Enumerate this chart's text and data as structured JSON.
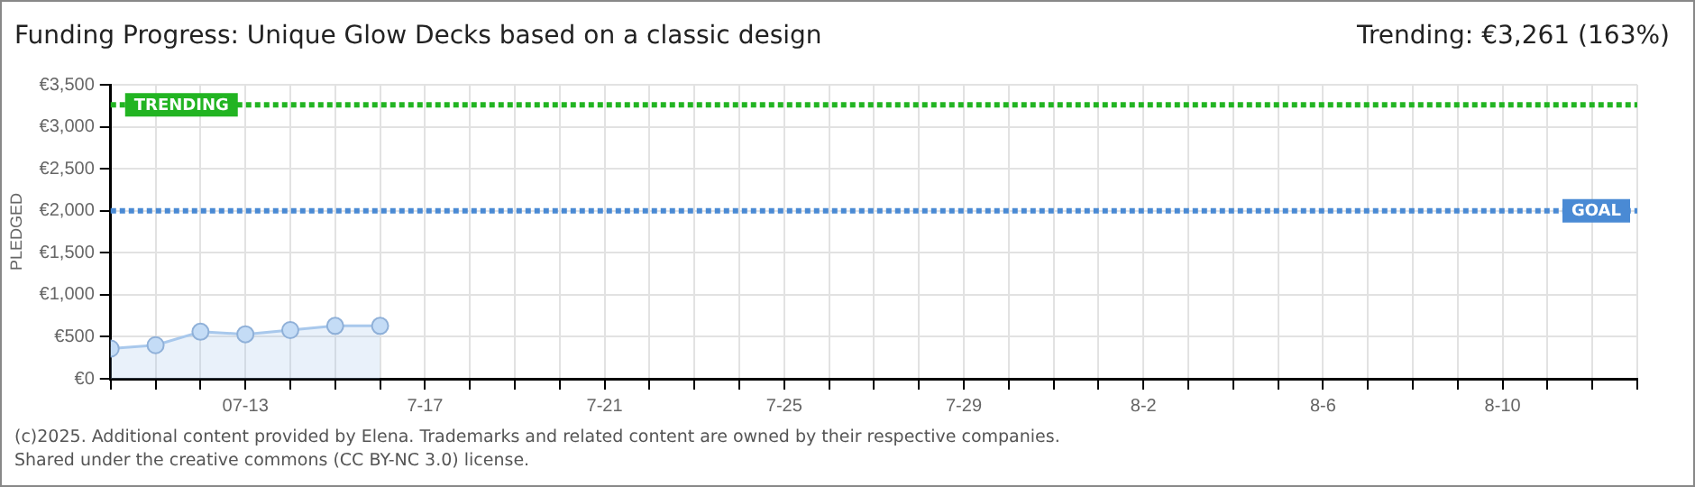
{
  "chart_data": {
    "type": "area",
    "title": "Funding Progress: Unique Glow Decks based on a classic design",
    "subtitle": "Trending: €3,261 (163%)",
    "ylabel": "PLEDGED",
    "x": [
      "--07-10",
      "--07-11",
      "--07-12",
      "--07-13",
      "--07-14",
      "--07-15",
      "--07-16"
    ],
    "series": [
      {
        "color": "#a8c8ec",
        "values": [
          360,
          400,
          560,
          530,
          580,
          630,
          630
        ]
      }
    ],
    "xlim": [
      "--07-10",
      "--08-13"
    ],
    "xticks": [
      {
        "value": "--07-10",
        "label": null
      },
      {
        "value": "--07-11",
        "label": null
      },
      {
        "value": "--07-12",
        "label": null
      },
      {
        "value": "--07-13",
        "label": "07-13"
      },
      {
        "value": "--07-14",
        "label": null
      },
      {
        "value": "--07-15",
        "label": null
      },
      {
        "value": "--07-16",
        "label": null
      },
      {
        "value": "--07-17",
        "label": "7-17"
      },
      {
        "value": "--07-18",
        "label": null
      },
      {
        "value": "--07-19",
        "label": null
      },
      {
        "value": "--07-20",
        "label": null
      },
      {
        "value": "--07-21",
        "label": "7-21"
      },
      {
        "value": "--07-22",
        "label": null
      },
      {
        "value": "--07-23",
        "label": null
      },
      {
        "value": "--07-24",
        "label": null
      },
      {
        "value": "--07-25",
        "label": "7-25"
      },
      {
        "value": "--07-26",
        "label": null
      },
      {
        "value": "--07-27",
        "label": null
      },
      {
        "value": "--07-28",
        "label": null
      },
      {
        "value": "--07-29",
        "label": "7-29"
      },
      {
        "value": "--07-30",
        "label": null
      },
      {
        "value": "--07-31",
        "label": null
      },
      {
        "value": "--08-01",
        "label": null
      },
      {
        "value": "--08-02",
        "label": "8-2"
      },
      {
        "value": "--08-03",
        "label": null
      },
      {
        "value": "--08-04",
        "label": null
      },
      {
        "value": "--08-05",
        "label": null
      },
      {
        "value": "--08-06",
        "label": "8-6"
      },
      {
        "value": "--08-07",
        "label": null
      },
      {
        "value": "--08-08",
        "label": null
      },
      {
        "value": "--08-09",
        "label": null
      },
      {
        "value": "--08-10",
        "label": "8-10"
      },
      {
        "value": "--08-11",
        "label": null
      },
      {
        "value": "--08-12",
        "label": null
      },
      {
        "value": "--08-13",
        "label": null
      }
    ],
    "ylim": [
      0,
      3500
    ],
    "yticks": [
      {
        "value": 0,
        "label": "€0"
      },
      {
        "value": 500,
        "label": "€500"
      },
      {
        "value": 1000,
        "label": "€1,000"
      },
      {
        "value": 1500,
        "label": "€1,500"
      },
      {
        "value": 2000,
        "label": "€2,000"
      },
      {
        "value": 2500,
        "label": "€2,500"
      },
      {
        "value": 3000,
        "label": "€3,000"
      },
      {
        "value": 3500,
        "label": "€3,500"
      }
    ],
    "ref_lines": [
      {
        "axis": "y",
        "value": 3261,
        "label": "TRENDING",
        "color": "#22b422",
        "line_style": "dotted"
      },
      {
        "axis": "y",
        "value": 2000,
        "label": "GOAL",
        "color": "#4a8ad4",
        "line_style": "dotted"
      }
    ],
    "grid": true,
    "legend": false,
    "marker": "circle",
    "line_style": "solid",
    "annotations": [
      "(c)2025. Additional content provided by Elena. Trademarks and related content are owned by their respective companies.",
      "Shared under the creative commons (CC BY-NC 3.0) license."
    ]
  }
}
